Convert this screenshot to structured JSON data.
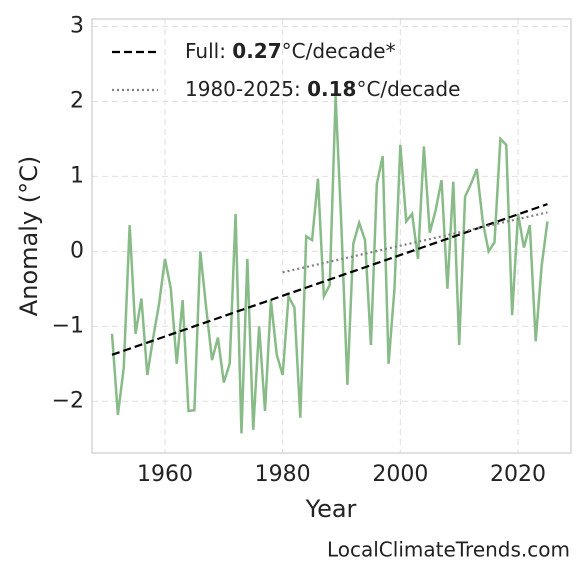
{
  "chart_data": {
    "type": "line",
    "xlabel": "Year",
    "ylabel": "Anomaly (°C)",
    "watermark": "LocalClimateTrends.com",
    "xlim": [
      1947.6,
      2029
    ],
    "xticks": [
      1960,
      1980,
      2000,
      2020
    ],
    "ylim": [
      -2.69,
      3.1
    ],
    "yticks": [
      {
        "value": -2,
        "label": "−2"
      },
      {
        "value": -1,
        "label": "−1"
      },
      0,
      1,
      2,
      3
    ],
    "grid": true,
    "legend": "upper left",
    "series": [
      {
        "color": "#88bb88",
        "style": "solid",
        "x": [
          1951,
          1952,
          1953,
          1954,
          1955,
          1956,
          1957,
          1958,
          1959,
          1960,
          1961,
          1962,
          1963,
          1964,
          1965,
          1966,
          1967,
          1968,
          1969,
          1970,
          1971,
          1972,
          1973,
          1974,
          1975,
          1976,
          1977,
          1978,
          1979,
          1980,
          1981,
          1982,
          1983,
          1984,
          1985,
          1986,
          1987,
          1988,
          1989,
          1990,
          1991,
          1992,
          1993,
          1994,
          1995,
          1996,
          1997,
          1998,
          1999,
          2000,
          2001,
          2002,
          2003,
          2004,
          2005,
          2006,
          2007,
          2008,
          2009,
          2010,
          2011,
          2012,
          2013,
          2014,
          2015,
          2016,
          2017,
          2018,
          2019,
          2020,
          2021,
          2022,
          2023,
          2024,
          2025
        ],
        "values": [
          -1.1,
          -2.18,
          -1.55,
          0.35,
          -1.1,
          -0.63,
          -1.65,
          -1.15,
          -0.7,
          -0.1,
          -0.5,
          -1.5,
          -0.65,
          -2.13,
          -2.12,
          0.0,
          -0.75,
          -1.45,
          -1.15,
          -1.75,
          -1.5,
          0.5,
          -2.43,
          -0.1,
          -2.38,
          -1.0,
          -2.13,
          -0.65,
          -1.38,
          -1.65,
          -0.6,
          -0.75,
          -2.22,
          0.2,
          0.15,
          0.97,
          -0.6,
          -0.45,
          2.07,
          0.3,
          -1.78,
          0.1,
          0.38,
          0.15,
          -1.25,
          0.9,
          1.27,
          -1.5,
          -0.5,
          1.42,
          0.4,
          0.5,
          -0.1,
          1.4,
          0.25,
          0.55,
          0.95,
          -0.5,
          0.93,
          -1.25,
          0.73,
          0.9,
          1.1,
          0.4,
          0.0,
          0.12,
          1.5,
          1.42,
          -0.85,
          0.5,
          0.05,
          0.35,
          -1.2,
          -0.2,
          0.4
        ]
      },
      {
        "name": [
          "Full: ",
          "0.27",
          "°C/decade*"
        ],
        "color": "#000000",
        "style": "dashed",
        "x": [
          1951,
          2025
        ],
        "values": [
          -1.38,
          0.63
        ]
      },
      {
        "name": [
          "1980-2025: ",
          "0.18",
          "°C/decade"
        ],
        "color": "#808080",
        "style": "dotted",
        "x": [
          1980,
          2025
        ],
        "values": [
          -0.28,
          0.52
        ]
      }
    ]
  }
}
